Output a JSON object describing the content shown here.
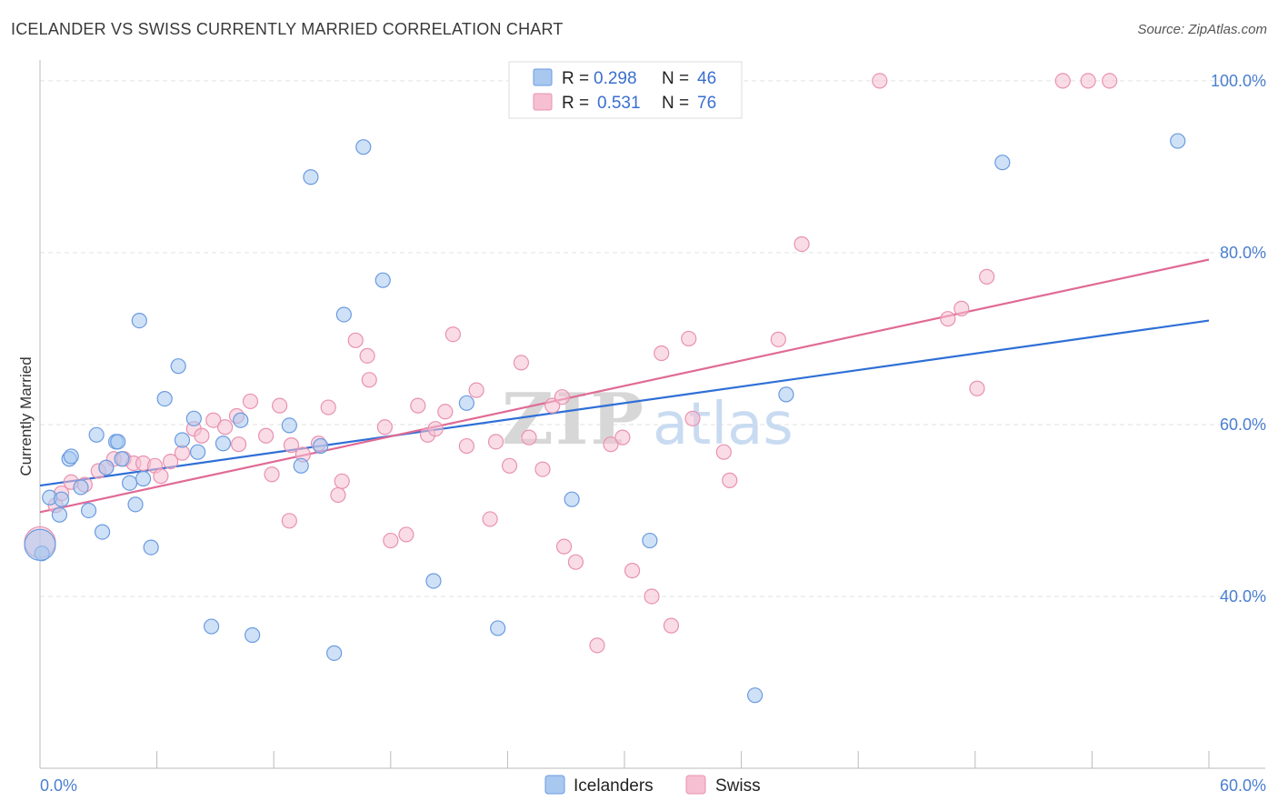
{
  "title": "ICELANDER VS SWISS CURRENTLY MARRIED CORRELATION CHART",
  "source": "Source: ZipAtlas.com",
  "watermark": {
    "zip": "ZIP",
    "atlas": "atlas"
  },
  "colors": {
    "blue_fill": "#a8c8f0",
    "blue_stroke": "#6a9be0",
    "blue_line": "#2e6fd6",
    "pink_fill": "#f6bfd2",
    "pink_stroke": "#e892b0",
    "pink_line": "#e06a95",
    "tick_text": "#4a7fd0",
    "grid": "#e2e2e2"
  },
  "legend": {
    "rows": [
      {
        "r_label": "R =",
        "r_value": "0.298",
        "n_label": "N =",
        "n_value": "46"
      },
      {
        "r_label": "R =",
        "r_value": "0.531",
        "n_label": "N =",
        "n_value": "76"
      }
    ]
  },
  "bottom_legend": {
    "items": [
      "Icelanders",
      "Swiss"
    ]
  },
  "chart_data": {
    "type": "scatter",
    "title": "ICELANDER VS SWISS CURRENTLY MARRIED CORRELATION CHART",
    "xlabel": "",
    "ylabel": "Currently Married",
    "xlim": [
      0,
      60
    ],
    "ylim": [
      20,
      102
    ],
    "x_tick_labels": [
      "0.0%",
      "60.0%"
    ],
    "y_ticks": [
      40,
      60,
      80,
      100
    ],
    "y_tick_labels": [
      "40.0%",
      "60.0%",
      "80.0%",
      "100.0%"
    ],
    "grid": true,
    "legend_position": "top-center",
    "series": [
      {
        "name": "Icelanders",
        "r": 0.298,
        "n": 46,
        "trend": {
          "x0": 0,
          "y0": 52.9,
          "x1": 60,
          "y1": 72.1
        },
        "points": [
          [
            0.1,
            45.0
          ],
          [
            0.5,
            51.5
          ],
          [
            1.0,
            49.5
          ],
          [
            1.1,
            51.3
          ],
          [
            1.5,
            56.0
          ],
          [
            1.6,
            56.3
          ],
          [
            2.1,
            52.7
          ],
          [
            2.5,
            50.0
          ],
          [
            2.9,
            58.8
          ],
          [
            3.2,
            47.5
          ],
          [
            3.4,
            55.0
          ],
          [
            3.9,
            58.0
          ],
          [
            4.0,
            58.0
          ],
          [
            4.2,
            56.0
          ],
          [
            4.6,
            53.2
          ],
          [
            4.9,
            50.7
          ],
          [
            5.1,
            72.1
          ],
          [
            5.3,
            53.7
          ],
          [
            5.7,
            45.7
          ],
          [
            6.4,
            63.0
          ],
          [
            7.1,
            66.8
          ],
          [
            7.3,
            58.2
          ],
          [
            7.9,
            60.7
          ],
          [
            8.1,
            56.8
          ],
          [
            8.8,
            36.5
          ],
          [
            9.4,
            57.8
          ],
          [
            10.3,
            60.5
          ],
          [
            10.9,
            35.5
          ],
          [
            12.8,
            59.9
          ],
          [
            13.4,
            55.2
          ],
          [
            13.9,
            88.8
          ],
          [
            14.4,
            57.5
          ],
          [
            15.1,
            33.4
          ],
          [
            15.6,
            72.8
          ],
          [
            16.6,
            92.3
          ],
          [
            17.6,
            76.8
          ],
          [
            20.2,
            41.8
          ],
          [
            21.9,
            62.5
          ],
          [
            23.5,
            36.3
          ],
          [
            27.3,
            51.3
          ],
          [
            31.3,
            46.5
          ],
          [
            36.7,
            28.5
          ],
          [
            38.3,
            63.5
          ],
          [
            49.4,
            90.5
          ],
          [
            58.4,
            93.0
          ],
          [
            0.0,
            46.0
          ]
        ]
      },
      {
        "name": "Swiss",
        "r": 0.531,
        "n": 76,
        "trend": {
          "x0": 0,
          "y0": 49.8,
          "x1": 60,
          "y1": 79.2
        },
        "points": [
          [
            0.0,
            46.3
          ],
          [
            0.8,
            50.6
          ],
          [
            1.1,
            52.0
          ],
          [
            1.6,
            53.3
          ],
          [
            2.3,
            53.0
          ],
          [
            3.0,
            54.6
          ],
          [
            3.4,
            55.0
          ],
          [
            3.8,
            56.0
          ],
          [
            4.3,
            56.0
          ],
          [
            4.8,
            55.5
          ],
          [
            5.3,
            55.5
          ],
          [
            5.9,
            55.2
          ],
          [
            6.2,
            54.0
          ],
          [
            6.7,
            55.7
          ],
          [
            7.3,
            56.7
          ],
          [
            7.9,
            59.5
          ],
          [
            8.3,
            58.7
          ],
          [
            8.9,
            60.5
          ],
          [
            9.5,
            59.7
          ],
          [
            10.1,
            61.0
          ],
          [
            10.2,
            57.7
          ],
          [
            10.8,
            62.7
          ],
          [
            11.6,
            58.7
          ],
          [
            11.9,
            54.2
          ],
          [
            12.3,
            62.2
          ],
          [
            12.8,
            48.8
          ],
          [
            12.9,
            57.6
          ],
          [
            13.5,
            56.5
          ],
          [
            14.3,
            57.8
          ],
          [
            14.8,
            62.0
          ],
          [
            15.3,
            51.8
          ],
          [
            15.5,
            53.4
          ],
          [
            16.2,
            69.8
          ],
          [
            16.8,
            68.0
          ],
          [
            16.9,
            65.2
          ],
          [
            17.7,
            59.7
          ],
          [
            18.0,
            46.5
          ],
          [
            18.8,
            47.2
          ],
          [
            19.4,
            62.2
          ],
          [
            19.9,
            58.8
          ],
          [
            20.3,
            59.5
          ],
          [
            20.8,
            61.5
          ],
          [
            21.2,
            70.5
          ],
          [
            21.9,
            57.5
          ],
          [
            22.4,
            64.0
          ],
          [
            23.1,
            49.0
          ],
          [
            23.4,
            58.0
          ],
          [
            24.1,
            55.2
          ],
          [
            24.7,
            67.2
          ],
          [
            25.1,
            58.5
          ],
          [
            25.8,
            54.8
          ],
          [
            26.3,
            62.2
          ],
          [
            26.8,
            63.2
          ],
          [
            26.9,
            45.8
          ],
          [
            27.5,
            44.0
          ],
          [
            28.6,
            34.3
          ],
          [
            29.3,
            57.7
          ],
          [
            29.9,
            58.5
          ],
          [
            30.4,
            43.0
          ],
          [
            31.4,
            40.0
          ],
          [
            31.9,
            68.3
          ],
          [
            32.4,
            36.6
          ],
          [
            33.3,
            70.0
          ],
          [
            33.5,
            60.7
          ],
          [
            35.1,
            56.8
          ],
          [
            35.4,
            53.5
          ],
          [
            37.9,
            69.9
          ],
          [
            39.1,
            81.0
          ],
          [
            43.1,
            100.0
          ],
          [
            46.6,
            72.3
          ],
          [
            47.3,
            73.5
          ],
          [
            48.1,
            64.2
          ],
          [
            48.6,
            77.2
          ],
          [
            52.5,
            100.0
          ],
          [
            53.8,
            100.0
          ],
          [
            54.9,
            100.0
          ]
        ]
      }
    ]
  }
}
